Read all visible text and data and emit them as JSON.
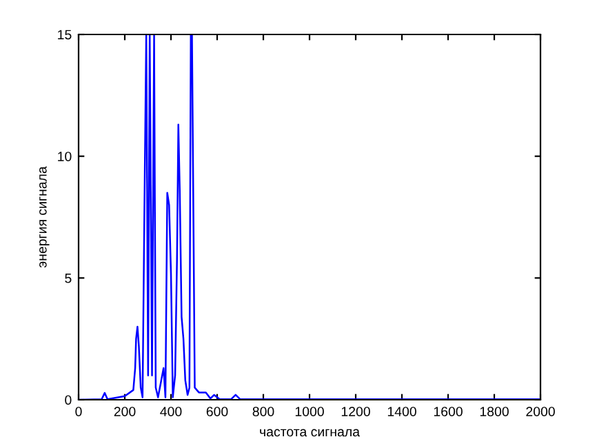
{
  "chart_data": {
    "type": "line",
    "xlabel": "частота сигнала",
    "ylabel": "энергия сигнала",
    "series": [
      {
        "color": "#0000ff",
        "x": [
          0,
          100,
          113,
          125,
          200,
          237,
          245,
          249,
          255,
          261,
          269,
          277,
          285,
          293,
          301,
          308,
          318,
          327,
          334,
          344,
          358,
          368,
          376,
          384,
          392,
          400,
          408,
          418,
          426,
          432,
          438,
          446,
          454,
          462,
          472,
          480,
          486,
          491,
          497,
          503,
          521,
          551,
          571,
          587,
          611,
          660,
          680,
          700,
          800,
          1000,
          1500,
          2000
        ],
        "values": [
          0,
          0.02,
          0.28,
          0.02,
          0.15,
          0.4,
          1.3,
          2.5,
          3.0,
          2.2,
          0.5,
          0.1,
          7.8,
          15,
          1.0,
          15,
          1.0,
          15,
          0.5,
          0.1,
          0.8,
          1.3,
          0.1,
          8.5,
          8.0,
          5.2,
          0.1,
          1.0,
          5.7,
          11.3,
          8.6,
          3.4,
          2.5,
          0.8,
          0.2,
          0.5,
          15,
          15,
          7.8,
          0.5,
          0.3,
          0.3,
          0.05,
          0.2,
          0.02,
          0.02,
          0.2,
          0.02,
          0.02,
          0.02,
          0.02,
          0.02
        ]
      }
    ],
    "xlim": [
      0,
      2000
    ],
    "xticks": [
      0,
      200,
      400,
      600,
      800,
      1000,
      1200,
      1400,
      1600,
      1800,
      2000
    ],
    "ylim": [
      0,
      15
    ],
    "yticks": [
      0,
      5,
      10,
      15
    ],
    "grid": false,
    "legend": false
  }
}
